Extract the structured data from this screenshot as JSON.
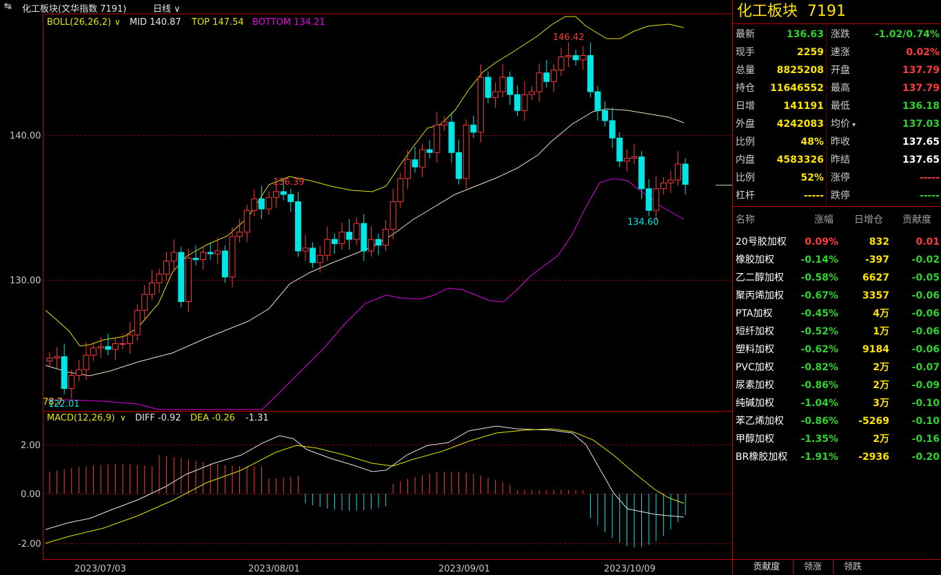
{
  "header": {
    "back_icon": "↹",
    "title": "化工板块(文华指数 7191)",
    "period": "日线"
  },
  "boll": {
    "label": "BOLL(26,26,2)",
    "mid": "MID 140.87",
    "top": "TOP 147.54",
    "bottom": "BOTTOM 134.21"
  },
  "macd": {
    "label": "MACD(12,26,9)",
    "diff": "DIFF -0.92",
    "dea": "DEA -0.26",
    "macd": "-1.31"
  },
  "price_axis": [
    "140.00",
    "130.00"
  ],
  "macd_axis": [
    "2.00",
    "0.00",
    "-2.00"
  ],
  "date_axis": [
    "2023/07/03",
    "2023/08/01",
    "2023/09/01",
    "2023/10/09"
  ],
  "annotations": {
    "high1": "136.39",
    "high2": "146.42",
    "low1": "134.60",
    "low0": "122.01",
    "low0_prefix": "78.7"
  },
  "panel": {
    "title": "化工板块",
    "code": "7191",
    "quote": [
      {
        "l": "最新",
        "lv": "136.63",
        "lc": "#2fd32f",
        "r": "涨跌",
        "rv": "-1.02/0.74%",
        "rc": "#2fd32f"
      },
      {
        "l": "现手",
        "lv": "2259",
        "lc": "#ffe400",
        "r": "速涨",
        "rv": "0.02%",
        "rc": "#ff3b3b"
      },
      {
        "l": "总量",
        "lv": "8825208",
        "lc": "#ffe400",
        "r": "开盘",
        "rv": "137.79",
        "rc": "#ff3b3b"
      },
      {
        "l": "持仓",
        "lv": "11646552",
        "lc": "#ffe400",
        "r": "最高",
        "rv": "137.79",
        "rc": "#ff3b3b"
      },
      {
        "l": "日增",
        "lv": "141191",
        "lc": "#ffe400",
        "r": "最低",
        "rv": "136.18",
        "rc": "#2fd32f"
      },
      {
        "l": "外盘",
        "lv": "4242083",
        "lc": "#ffe400",
        "r": "均价",
        "rv": "137.03",
        "rc": "#2fd32f"
      },
      {
        "l": "比例",
        "lv": "48%",
        "lc": "#ffe400",
        "r": "昨收",
        "rv": "137.65",
        "rc": "#ffffff"
      },
      {
        "l": "内盘",
        "lv": "4583326",
        "lc": "#ffe400",
        "r": "昨结",
        "rv": "137.65",
        "rc": "#ffffff"
      },
      {
        "l": "比例",
        "lv": "52%",
        "lc": "#ffe400",
        "r": "涨停",
        "rv": "-----",
        "rc": "#ff3b3b"
      },
      {
        "l": "杠杆",
        "lv": "-----",
        "lc": "#ffe400",
        "r": "跌停",
        "rv": "-----",
        "rc": "#2fd32f"
      }
    ],
    "contrib_headers": [
      "名称",
      "涨幅",
      "日增仓",
      "贡献度"
    ],
    "contrib": [
      {
        "name": "20号胶加权",
        "chg": "0.09%",
        "cc": "#ff3b3b",
        "inc": "832",
        "con": "0.01",
        "kc": "#ff3b3b"
      },
      {
        "name": "橡胶加权",
        "chg": "-0.14%",
        "cc": "#2fd32f",
        "inc": "-397",
        "con": "-0.02",
        "kc": "#2fd32f"
      },
      {
        "name": "乙二醇加权",
        "chg": "-0.58%",
        "cc": "#2fd32f",
        "inc": "6627",
        "con": "-0.05",
        "kc": "#2fd32f"
      },
      {
        "name": "聚丙烯加权",
        "chg": "-0.67%",
        "cc": "#2fd32f",
        "inc": "3357",
        "con": "-0.06",
        "kc": "#2fd32f"
      },
      {
        "name": "PTA加权",
        "chg": "-0.45%",
        "cc": "#2fd32f",
        "inc": "4万",
        "con": "-0.06",
        "kc": "#2fd32f"
      },
      {
        "name": "短纤加权",
        "chg": "-0.52%",
        "cc": "#2fd32f",
        "inc": "1万",
        "con": "-0.06",
        "kc": "#2fd32f"
      },
      {
        "name": "塑料加权",
        "chg": "-0.62%",
        "cc": "#2fd32f",
        "inc": "9184",
        "con": "-0.06",
        "kc": "#2fd32f"
      },
      {
        "name": "PVC加权",
        "chg": "-0.82%",
        "cc": "#2fd32f",
        "inc": "2万",
        "con": "-0.07",
        "kc": "#2fd32f"
      },
      {
        "name": "尿素加权",
        "chg": "-0.86%",
        "cc": "#2fd32f",
        "inc": "2万",
        "con": "-0.09",
        "kc": "#2fd32f"
      },
      {
        "name": "纯碱加权",
        "chg": "-1.04%",
        "cc": "#2fd32f",
        "inc": "3万",
        "con": "-0.10",
        "kc": "#2fd32f"
      },
      {
        "name": "苯乙烯加权",
        "chg": "-0.86%",
        "cc": "#2fd32f",
        "inc": "-5269",
        "con": "-0.10",
        "kc": "#2fd32f"
      },
      {
        "name": "甲醇加权",
        "chg": "-1.35%",
        "cc": "#2fd32f",
        "inc": "2万",
        "con": "-0.16",
        "kc": "#2fd32f"
      },
      {
        "name": "BR橡胶加权",
        "chg": "-1.91%",
        "cc": "#2fd32f",
        "inc": "-2936",
        "con": "-0.20",
        "kc": "#2fd32f"
      }
    ],
    "tabs": [
      "贡献度",
      "领涨",
      "领跌"
    ]
  },
  "colors": {
    "up": "#ff3b3b",
    "down": "#00e5e5",
    "mid": "#e8e8c0",
    "top": "#e6e600",
    "bottom": "#e600e6",
    "grid": "#8b0000"
  },
  "chart_data": {
    "type": "candlestick",
    "closes": [
      124.6,
      124.7,
      122.5,
      123.4,
      123.8,
      124.8,
      125.3,
      125.4,
      125.2,
      125.6,
      125.6,
      126.2,
      127.9,
      129.0,
      129.8,
      130.4,
      131.3,
      131.9,
      128.5,
      131.5,
      131.4,
      131.9,
      131.8,
      132.0,
      130.2,
      133.0,
      133.3,
      134.8,
      135.6,
      134.9,
      135.7,
      136.1,
      135.9,
      135.4,
      132.0,
      132.2,
      131.2,
      131.7,
      132.8,
      132.5,
      133.3,
      132.8,
      133.9,
      132.0,
      132.8,
      132.4,
      133.5,
      135.4,
      137.0,
      138.3,
      137.8,
      139.0,
      138.8,
      140.7,
      140.9,
      138.8,
      137.0,
      140.7,
      140.2,
      144.0,
      142.6,
      143.0,
      144.0,
      142.8,
      141.7,
      142.8,
      143.0,
      144.3,
      143.7,
      144.5,
      145.4,
      145.5,
      145.2,
      145.5,
      143.0,
      141.7,
      141.0,
      139.8,
      138.2,
      138.4,
      138.5,
      136.3,
      134.8,
      136.3,
      136.7,
      136.9,
      138.0,
      136.6
    ],
    "price_axis_ticks": [
      140,
      130
    ],
    "macd_axis_ticks": [
      2,
      0,
      -2
    ]
  }
}
